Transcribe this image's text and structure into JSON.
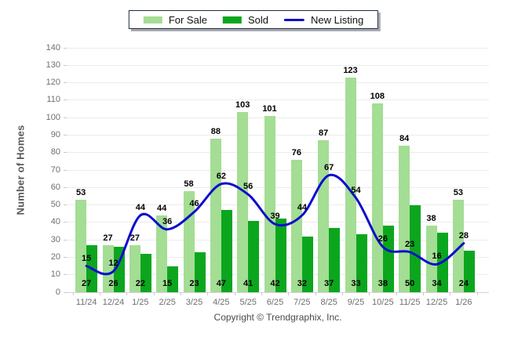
{
  "footer": {
    "copyright": "Copyright © Trendgraphix, Inc."
  },
  "colors": {
    "for_sale": "#A4DD94",
    "sold": "#0BA61E",
    "new_listing": "#0D0DCE",
    "grid": "#EBEBEB",
    "tick_text": "#6E6E6E"
  },
  "chart_data": {
    "type": "bar",
    "title": "",
    "xlabel": "",
    "ylabel": "Number of Homes",
    "ylim": [
      0,
      140
    ],
    "ytick_step": 10,
    "grid": true,
    "legend_position": "top-center",
    "categories": [
      "11/24",
      "12/24",
      "1/25",
      "2/25",
      "3/25",
      "4/25",
      "5/25",
      "6/25",
      "7/25",
      "8/25",
      "9/25",
      "10/25",
      "11/25",
      "12/25",
      "1/26"
    ],
    "series": [
      {
        "name": "For Sale",
        "type": "bar",
        "color": "#A4DD94",
        "values": [
          53,
          27,
          27,
          44,
          58,
          88,
          103,
          101,
          76,
          87,
          123,
          108,
          84,
          38,
          53
        ]
      },
      {
        "name": "Sold",
        "type": "bar",
        "color": "#0BA61E",
        "values": [
          27,
          26,
          22,
          15,
          23,
          47,
          41,
          42,
          32,
          37,
          33,
          38,
          50,
          34,
          24
        ]
      },
      {
        "name": "New Listing",
        "type": "line",
        "color": "#0D0DCE",
        "values": [
          15,
          12,
          44,
          36,
          46,
          62,
          56,
          39,
          44,
          67,
          54,
          26,
          23,
          16,
          28
        ]
      }
    ]
  }
}
